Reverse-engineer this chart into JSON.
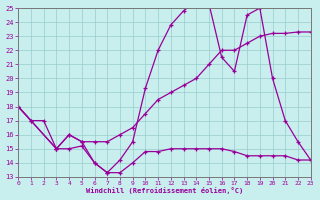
{
  "background_color": "#c8eeee",
  "grid_color": "#99cccc",
  "line_color": "#990099",
  "marker": "+",
  "xlabel": "Windchill (Refroidissement éolien,°C)",
  "xlim": [
    0,
    23
  ],
  "ylim": [
    13,
    25
  ],
  "yticks": [
    13,
    14,
    15,
    16,
    17,
    18,
    19,
    20,
    21,
    22,
    23,
    24,
    25
  ],
  "xticks": [
    0,
    1,
    2,
    3,
    4,
    5,
    6,
    7,
    8,
    9,
    10,
    11,
    12,
    13,
    14,
    15,
    16,
    17,
    18,
    19,
    20,
    21,
    22,
    23
  ],
  "series": [
    {
      "x": [
        0,
        1,
        2,
        3,
        4,
        5,
        6,
        7,
        8,
        9,
        10,
        11,
        12,
        13,
        14,
        15,
        16,
        17,
        18,
        19,
        20,
        21,
        22,
        23
      ],
      "y": [
        18,
        17,
        17,
        15,
        15,
        15.2,
        14,
        13.3,
        13.3,
        14,
        14.8,
        14.8,
        15,
        15,
        15,
        15,
        15,
        14.8,
        14.5,
        14.5,
        14.5,
        14.5,
        14.2,
        14.2
      ]
    },
    {
      "x": [
        0,
        1,
        3,
        4,
        5,
        6,
        7,
        8,
        9,
        10,
        11,
        12,
        13,
        14,
        15,
        16,
        17,
        18,
        19,
        20,
        21,
        22,
        23
      ],
      "y": [
        18,
        17,
        15,
        16,
        15.5,
        15.5,
        15.5,
        16,
        16.5,
        17.5,
        18.5,
        19,
        19.5,
        20,
        21,
        22,
        22,
        22.5,
        23,
        23.2,
        23.2,
        23.3,
        23.3
      ]
    },
    {
      "x": [
        0,
        3,
        4,
        5,
        6,
        7,
        8,
        9,
        10,
        11,
        12,
        13,
        14,
        15,
        16,
        17,
        18,
        19,
        20,
        21,
        22,
        23
      ],
      "y": [
        18,
        15,
        16,
        15.5,
        14,
        13.3,
        14.2,
        15.5,
        19.3,
        22,
        23.8,
        24.8,
        25.5,
        25.3,
        21.5,
        20.5,
        24.5,
        25,
        20,
        17,
        15.5,
        14.2
      ]
    }
  ]
}
